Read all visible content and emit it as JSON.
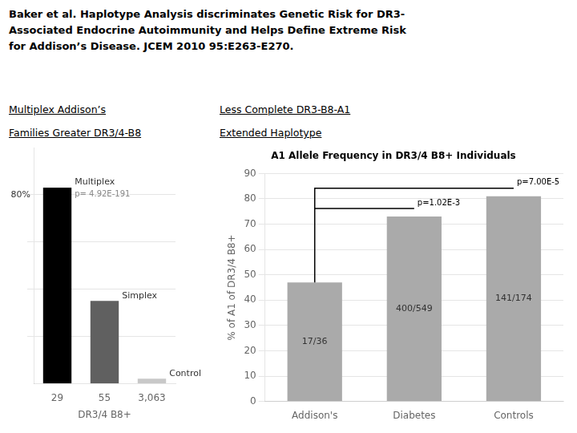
{
  "title": [
    "Baker et al. Haplotype Analysis discriminates Genetic Risk for DR3-",
    "Associated Endocrine Autoimmunity and Helps Define Extreme Risk",
    "for Addison’s Disease. JCEM 2010 95:E263-E270."
  ],
  "chart_data": [
    {
      "type": "bar",
      "subtitle": [
        "Multiplex Addison’s",
        "Families Greater DR3/4-B8"
      ],
      "categories": [
        "29",
        "55",
        "3,063"
      ],
      "values": [
        83,
        35,
        2
      ],
      "colors": [
        "#000000",
        "#606060",
        "#c8c8c8"
      ],
      "xlabel": "DR3/4 B8+",
      "ylim": [
        0,
        100
      ],
      "yticks": [
        20,
        40,
        60,
        80
      ],
      "grid": true,
      "tick_labels": "x",
      "annotations": [
        {
          "text": "80%",
          "y": 80
        },
        {
          "text": "Multiplex",
          "category": "29"
        },
        {
          "text": "p= 4.92E-191",
          "category": "29",
          "color": "#888888"
        },
        {
          "text": "Simplex",
          "category": "55"
        },
        {
          "text": "Control",
          "category": "3,063"
        }
      ]
    },
    {
      "type": "bar",
      "title": "A1 Allele Frequency in DR3/4 B8+ Individuals",
      "subtitle": [
        "Less Complete DR3-B8-A1",
        "Extended Haplotype"
      ],
      "categories": [
        "Addison's",
        "Diabetes",
        "Controls"
      ],
      "values": [
        47,
        73,
        81
      ],
      "color": "#aaaaaa",
      "ylabel": "% of A1 of DR3/4 B8+",
      "ylim": [
        0,
        90
      ],
      "yticks": [
        0,
        10,
        20,
        30,
        40,
        50,
        60,
        70,
        80,
        90
      ],
      "grid": true,
      "annotations": [
        {
          "text": "17/36",
          "category": "Addison's"
        },
        {
          "text": "400/549",
          "category": "Diabetes"
        },
        {
          "text": "141/174",
          "category": "Controls"
        },
        {
          "text": "p=1.02E-3",
          "from": "Addison's",
          "to": "Diabetes"
        },
        {
          "text": "p=7.00E-5",
          "from": "Addison's",
          "to": "Controls"
        }
      ]
    }
  ]
}
